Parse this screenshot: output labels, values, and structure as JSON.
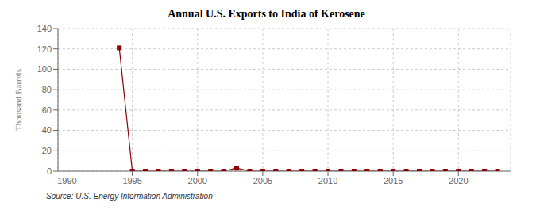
{
  "chart_data": {
    "type": "line",
    "title": "Annual U.S. Exports to India of Kerosene",
    "ylabel": "Thousand Barrels",
    "annotation": "Source: U.S. Energy Information Administration",
    "x": [
      1994,
      1995,
      1996,
      1997,
      1998,
      1999,
      2000,
      2001,
      2002,
      2003,
      2004,
      2005,
      2006,
      2007,
      2008,
      2009,
      2010,
      2011,
      2012,
      2013,
      2014,
      2015,
      2016,
      2017,
      2018,
      2019,
      2020,
      2021,
      2022,
      2023
    ],
    "values": [
      121,
      0,
      0,
      0,
      0,
      0,
      0,
      0,
      0,
      3,
      0,
      0,
      0,
      0,
      0,
      0,
      0,
      0,
      0,
      0,
      0,
      0,
      0,
      0,
      0,
      0,
      0,
      0,
      0,
      0
    ],
    "color": "#8b0000",
    "marker": "square",
    "xlim": [
      1989.3,
      2024
    ],
    "xticks": [
      1990,
      1995,
      2000,
      2005,
      2010,
      2015,
      2020
    ],
    "ylim": [
      0,
      140
    ],
    "yticks": [
      0,
      20,
      40,
      60,
      80,
      100,
      120,
      140
    ],
    "grid": true
  }
}
